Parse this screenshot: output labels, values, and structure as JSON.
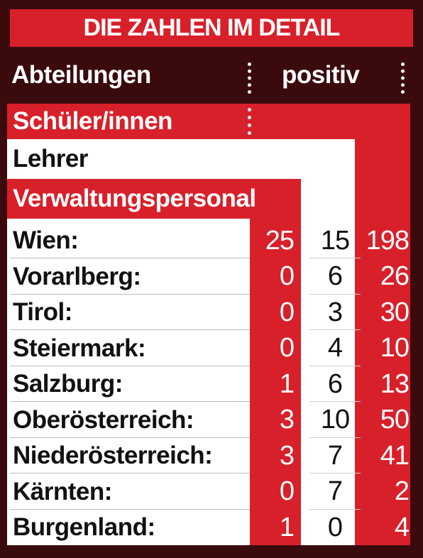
{
  "title": "DIE ZAHLEN IM DETAIL",
  "header": {
    "col_label": "Abteilungen",
    "positiv_label": "positiv"
  },
  "categories": {
    "students": "Schüler/innen",
    "teachers": "Lehrer",
    "admin": "Verwaltungspersonal"
  },
  "colors": {
    "background": "#3a0a0d",
    "accent_red": "#d8202a",
    "white": "#ffffff"
  },
  "chart_data": {
    "type": "table",
    "title": "DIE ZAHLEN IM DETAIL",
    "columns": [
      "Abteilungen",
      "Verwaltungspersonal",
      "Lehrer",
      "Schüler/innen"
    ],
    "rows": [
      {
        "name": "Wien:",
        "admin": "25",
        "teachers": "15",
        "students": "198"
      },
      {
        "name": "Vorarlberg:",
        "admin": "0",
        "teachers": "6",
        "students": "26"
      },
      {
        "name": "Tirol:",
        "admin": "0",
        "teachers": "3",
        "students": "30"
      },
      {
        "name": "Steiermark:",
        "admin": "0",
        "teachers": "4",
        "students": "10"
      },
      {
        "name": "Salzburg:",
        "admin": "1",
        "teachers": "6",
        "students": "13"
      },
      {
        "name": "Oberösterreich:",
        "admin": "3",
        "teachers": "10",
        "students": "50"
      },
      {
        "name": "Niederösterreich:",
        "admin": "3",
        "teachers": "7",
        "students": "41"
      },
      {
        "name": "Kärnten:",
        "admin": "0",
        "teachers": "7",
        "students": "2"
      },
      {
        "name": "Burgenland:",
        "admin": "1",
        "teachers": "0",
        "students": "4"
      }
    ]
  }
}
